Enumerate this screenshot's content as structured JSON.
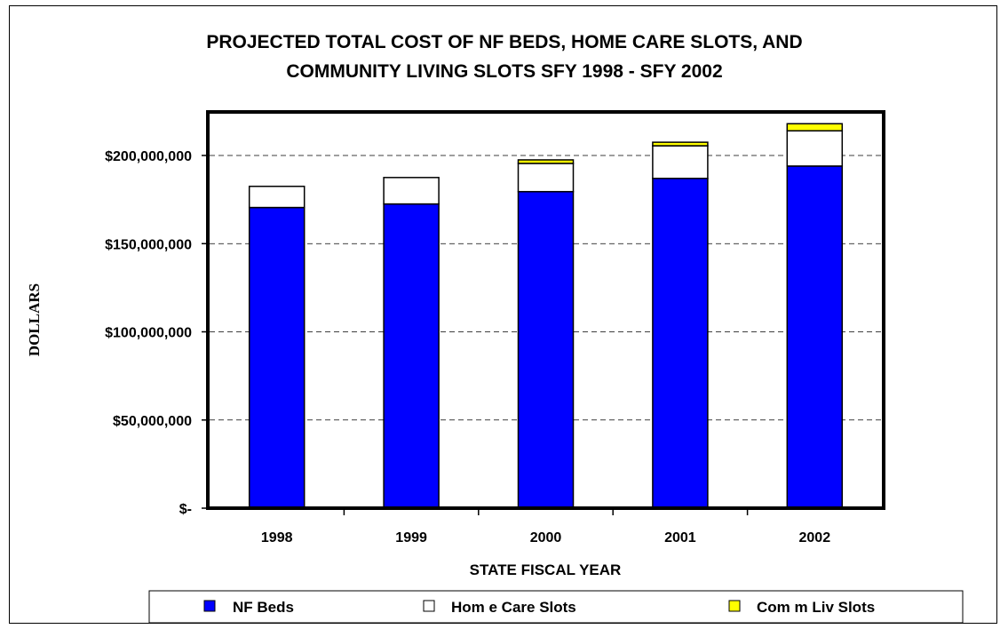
{
  "chart_data": {
    "type": "bar",
    "stacked": true,
    "title_lines": [
      "PROJECTED TOTAL COST OF NF BEDS, HOME CARE SLOTS, AND",
      "COMMUNITY LIVING SLOTS SFY 1998 - SFY 2002"
    ],
    "xlabel": "STATE FISCAL YEAR",
    "ylabel": "DOLLARS",
    "categories": [
      "1998",
      "1999",
      "2000",
      "2001",
      "2002"
    ],
    "y_ticks": [
      0,
      50000000,
      100000000,
      150000000,
      200000000
    ],
    "y_tick_labels": [
      "$-",
      "$50,000,000",
      "$100,000,000",
      "$150,000,000",
      "$200,000,000"
    ],
    "ylim": [
      0,
      225000000
    ],
    "grid": "horizontal dashed",
    "legend_position": "bottom",
    "series": [
      {
        "name": "NF Beds",
        "color": "#0000ff",
        "values": [
          170500000,
          172500000,
          179500000,
          187000000,
          194000000
        ]
      },
      {
        "name": "Home Care Slots",
        "color": "#ffffff",
        "values": [
          12000000,
          15000000,
          16000000,
          18500000,
          20000000
        ]
      },
      {
        "name": "Comm Liv Slots",
        "color": "#ffff00",
        "values": [
          0,
          0,
          2000000,
          2000000,
          4000000
        ]
      }
    ],
    "legend_labels": [
      "NF Beds",
      "Hom e Care Slots",
      "Com m Liv Slots"
    ]
  }
}
